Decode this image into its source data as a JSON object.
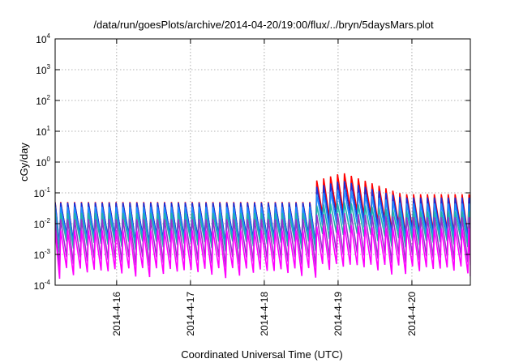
{
  "chart_data": {
    "type": "line",
    "title": "/data/run/goesPlots/archive/2014-04-20/19:00/flux/../bryn/5daysMars.plot",
    "xlabel": "Coordinated Universal Time (UTC)",
    "ylabel": "cGy/day",
    "yscale": "log",
    "ylim": [
      0.0001,
      10000
    ],
    "xlim": [
      "2014-04-15T04:00",
      "2014-04-20T19:00"
    ],
    "grid": true,
    "legend": "none",
    "y_ticks": [
      {
        "base": "10",
        "exp": "-4",
        "value": 0.0001
      },
      {
        "base": "10",
        "exp": "-3",
        "value": 0.001
      },
      {
        "base": "10",
        "exp": "-2",
        "value": 0.01
      },
      {
        "base": "10",
        "exp": "-1",
        "value": 0.1
      },
      {
        "base": "10",
        "exp": "0",
        "value": 1
      },
      {
        "base": "10",
        "exp": "1",
        "value": 10
      },
      {
        "base": "10",
        "exp": "2",
        "value": 100
      },
      {
        "base": "10",
        "exp": "3",
        "value": 1000
      },
      {
        "base": "10",
        "exp": "4",
        "value": 10000
      }
    ],
    "x_ticks": [
      {
        "label": "2014-4-16",
        "time": "2014-04-16T00:00"
      },
      {
        "label": "2014-4-17",
        "time": "2014-04-17T00:00"
      },
      {
        "label": "2014-4-18",
        "time": "2014-04-18T00:00"
      },
      {
        "label": "2014-4-19",
        "time": "2014-04-19T00:00"
      },
      {
        "label": "2014-4-20",
        "time": "2014-04-20T00:00"
      }
    ],
    "sawtooth_period_hours": 2.25,
    "event_onset": "2014-04-18T15:00",
    "series": [
      {
        "color": "#ff0000",
        "peak_before": 0.05,
        "peak_event_max": 0.45,
        "peak_after": 0.09,
        "trough_ratio": 0.08
      },
      {
        "color": "#1a2fd6",
        "peak_before": 0.048,
        "peak_event_max": 0.25,
        "peak_after": 0.07,
        "trough_ratio": 0.09
      },
      {
        "color": "#1e90ff",
        "peak_before": 0.035,
        "peak_event_max": 0.13,
        "peak_after": 0.045,
        "trough_ratio": 0.1
      },
      {
        "color": "#20b2aa",
        "peak_before": 0.022,
        "peak_event_max": 0.05,
        "peak_after": 0.025,
        "trough_ratio": 0.12
      },
      {
        "color": "#9932cc",
        "peak_before": 0.014,
        "peak_event_max": 0.022,
        "peak_after": 0.016,
        "trough_ratio": 0.06
      },
      {
        "color": "#ff00ff",
        "peak_before": 0.006,
        "peak_event_max": 0.009,
        "peak_after": 0.007,
        "trough_ratio": 0.06
      }
    ]
  }
}
